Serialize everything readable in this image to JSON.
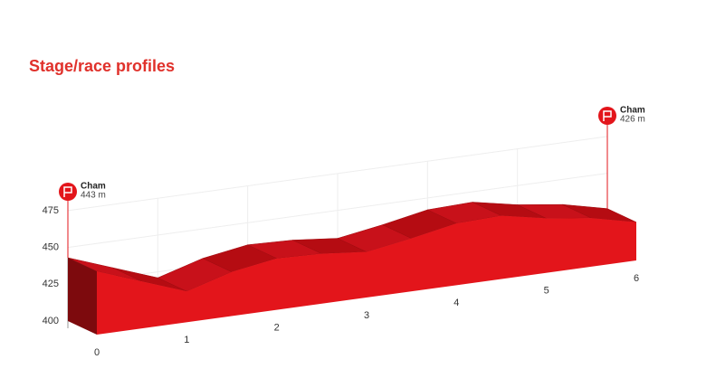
{
  "title": "Stage/race profiles",
  "chart_data": {
    "type": "elevation-profile",
    "x": [
      0,
      0.5,
      1,
      1.5,
      2,
      2.5,
      3,
      3.5,
      4,
      4.5,
      5,
      5.5,
      6
    ],
    "values": [
      443,
      432,
      421,
      430,
      435,
      434,
      431,
      436,
      442,
      443,
      437,
      433,
      426
    ],
    "color": "#e3151b",
    "xlim": [
      0,
      6
    ],
    "xticks": [
      0,
      1,
      2,
      3,
      4,
      5,
      6
    ],
    "ylim": [
      400,
      475
    ],
    "yticks": [
      400,
      425,
      450,
      475
    ],
    "grid": true,
    "start": {
      "name": "Cham",
      "label": "443 m"
    },
    "finish": {
      "name": "Cham",
      "label": "426 m"
    }
  }
}
